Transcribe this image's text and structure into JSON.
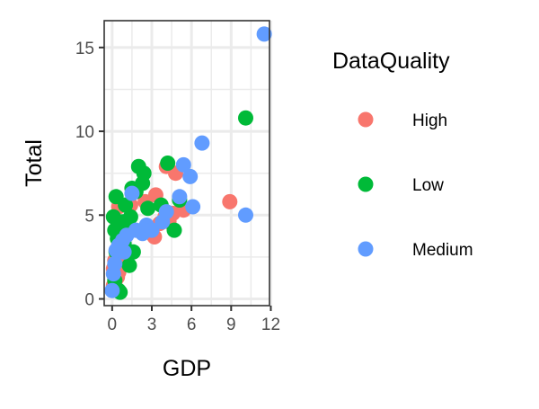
{
  "chart_data": {
    "type": "scatter",
    "title": "",
    "xlabel": "GDP",
    "ylabel": "Total",
    "xlim": [
      -0.6,
      11.9
    ],
    "ylim": [
      -0.4,
      16.6
    ],
    "x_ticks": [
      0,
      3,
      6,
      9,
      12
    ],
    "x_tick_labels": [
      "0",
      "3",
      "6",
      "9",
      "12"
    ],
    "y_ticks": [
      0,
      5,
      10,
      15
    ],
    "y_tick_labels": [
      "0",
      "5",
      "10",
      "15"
    ],
    "grid": true,
    "legend": {
      "title": "DataQuality",
      "position": "right",
      "entries": [
        "High",
        "Low",
        "Medium"
      ]
    },
    "colors": {
      "High": "#F8766D",
      "Low": "#00BA38",
      "Medium": "#619CFF"
    },
    "series": [
      {
        "name": "High",
        "points": [
          [
            0.1,
            0.8
          ],
          [
            0.2,
            1.0
          ],
          [
            0.3,
            1.2
          ],
          [
            0.2,
            1.5
          ],
          [
            0.4,
            1.3
          ],
          [
            0.1,
            1.8
          ],
          [
            0.3,
            2.0
          ],
          [
            0.2,
            2.3
          ],
          [
            0.5,
            1.6
          ],
          [
            0.4,
            2.6
          ],
          [
            0.6,
            3.0
          ],
          [
            0.7,
            2.4
          ],
          [
            0.5,
            5.5
          ],
          [
            1.4,
            5.6
          ],
          [
            2.5,
            5.8
          ],
          [
            3.3,
            6.2
          ],
          [
            3.2,
            3.7
          ],
          [
            3.6,
            4.5
          ],
          [
            4.0,
            4.9
          ],
          [
            4.3,
            4.6
          ],
          [
            4.6,
            5.1
          ],
          [
            5.4,
            5.3
          ],
          [
            4.8,
            7.5
          ],
          [
            4.1,
            7.9
          ],
          [
            8.9,
            5.8
          ]
        ]
      },
      {
        "name": "Low",
        "points": [
          [
            0.3,
            6.1
          ],
          [
            0.1,
            4.9
          ],
          [
            0.2,
            4.1
          ],
          [
            0.4,
            3.6
          ],
          [
            0.3,
            2.8
          ],
          [
            0.5,
            0.5
          ],
          [
            0.6,
            0.4
          ],
          [
            0.2,
            1.1
          ],
          [
            0.8,
            4.6
          ],
          [
            1.0,
            5.6
          ],
          [
            1.2,
            4.3
          ],
          [
            1.4,
            4.9
          ],
          [
            1.5,
            6.6
          ],
          [
            1.8,
            6.4
          ],
          [
            2.0,
            7.9
          ],
          [
            2.4,
            7.5
          ],
          [
            2.3,
            6.9
          ],
          [
            1.6,
            2.8
          ],
          [
            1.3,
            2.0
          ],
          [
            0.9,
            3.3
          ],
          [
            2.7,
            5.4
          ],
          [
            3.7,
            5.6
          ],
          [
            4.2,
            8.1
          ],
          [
            4.7,
            4.1
          ],
          [
            5.1,
            5.9
          ],
          [
            10.1,
            10.8
          ],
          [
            0.7,
            3.0
          ]
        ]
      },
      {
        "name": "Medium",
        "points": [
          [
            0.0,
            0.5
          ],
          [
            0.1,
            1.5
          ],
          [
            0.2,
            2.1
          ],
          [
            0.3,
            2.9
          ],
          [
            0.5,
            3.2
          ],
          [
            0.8,
            3.5
          ],
          [
            0.9,
            2.8
          ],
          [
            1.1,
            3.8
          ],
          [
            1.5,
            6.3
          ],
          [
            1.8,
            4.1
          ],
          [
            2.3,
            3.9
          ],
          [
            2.6,
            4.4
          ],
          [
            3.0,
            4.1
          ],
          [
            3.8,
            4.6
          ],
          [
            4.1,
            5.2
          ],
          [
            5.1,
            6.1
          ],
          [
            5.4,
            8.0
          ],
          [
            5.9,
            7.3
          ],
          [
            6.1,
            5.5
          ],
          [
            6.8,
            9.3
          ],
          [
            10.1,
            5.0
          ],
          [
            11.5,
            15.8
          ]
        ]
      }
    ]
  }
}
